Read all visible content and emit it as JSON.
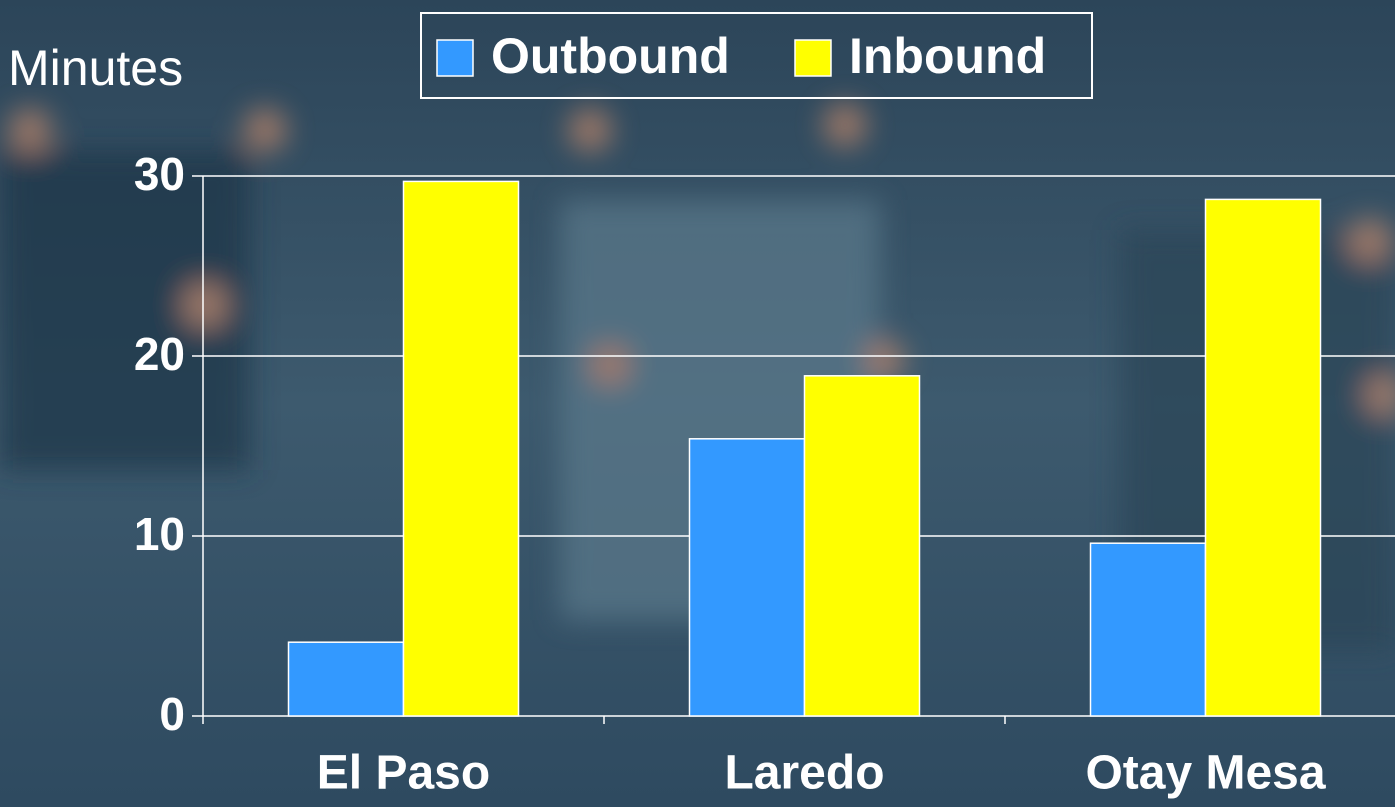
{
  "chart_data": {
    "type": "bar",
    "y_label": "Minutes",
    "categories": [
      "El Paso",
      "Laredo",
      "Otay Mesa"
    ],
    "series": [
      {
        "name": "Outbound",
        "color": "#3399ff",
        "values": [
          4.1,
          15.4,
          9.6
        ]
      },
      {
        "name": "Inbound",
        "color": "#ffff00",
        "values": [
          29.7,
          18.9,
          28.7
        ]
      }
    ],
    "ylim": [
      0,
      30
    ],
    "yticks": [
      0,
      10,
      20,
      30
    ],
    "grid": true
  }
}
